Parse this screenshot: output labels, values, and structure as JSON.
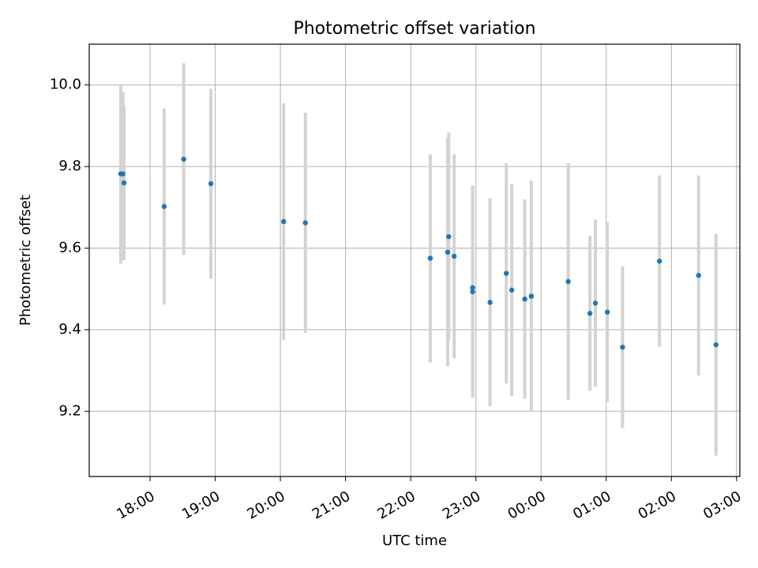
{
  "chart_data": {
    "type": "scatter",
    "title": "Photometric offset variation",
    "xlabel": "UTC time",
    "ylabel": "Photometric offset",
    "x_tick_labels": [
      "18:00",
      "19:00",
      "20:00",
      "21:00",
      "22:00",
      "23:00",
      "00:00",
      "01:00",
      "02:00",
      "03:00"
    ],
    "x_tick_hours": [
      18,
      19,
      20,
      21,
      22,
      23,
      24,
      25,
      26,
      27
    ],
    "y_ticks": [
      9.2,
      9.4,
      9.6,
      9.8,
      10.0
    ],
    "y_tick_labels": [
      "9.2",
      "9.4",
      "9.6",
      "9.8",
      "10.0"
    ],
    "xlim": [
      "17:04",
      "03:03"
    ],
    "ylim": [
      9.04,
      10.1
    ],
    "grid": true,
    "colors": {
      "points": "#1f77b4",
      "errorbars": "#d3d3d3",
      "grid": "#b0b0b0"
    },
    "series": [
      {
        "points": [
          {
            "x": "17:33",
            "y": 9.782,
            "err": 0.22
          },
          {
            "x": "17:35",
            "y": 9.782,
            "err": 0.2
          },
          {
            "x": "17:36",
            "y": 9.76,
            "err": 0.19
          },
          {
            "x": "18:13",
            "y": 9.702,
            "err": 0.24
          },
          {
            "x": "18:31",
            "y": 9.818,
            "err": 0.235
          },
          {
            "x": "18:56",
            "y": 9.758,
            "err": 0.233
          },
          {
            "x": "20:03",
            "y": 9.665,
            "err": 0.29
          },
          {
            "x": "20:23",
            "y": 9.662,
            "err": 0.27
          },
          {
            "x": "22:18",
            "y": 9.575,
            "err": 0.255
          },
          {
            "x": "22:34",
            "y": 9.59,
            "err": 0.28
          },
          {
            "x": "22:35",
            "y": 9.628,
            "err": 0.255
          },
          {
            "x": "22:40",
            "y": 9.58,
            "err": 0.25
          },
          {
            "x": "22:57",
            "y": 9.503,
            "err": 0.25
          },
          {
            "x": "22:57",
            "y": 9.493,
            "err": 0.26
          },
          {
            "x": "23:13",
            "y": 9.467,
            "err": 0.255
          },
          {
            "x": "23:28",
            "y": 9.538,
            "err": 0.27
          },
          {
            "x": "23:33",
            "y": 9.497,
            "err": 0.26
          },
          {
            "x": "23:45",
            "y": 9.475,
            "err": 0.245
          },
          {
            "x": "23:51",
            "y": 9.482,
            "err": 0.283
          },
          {
            "x": "00:25",
            "y": 9.518,
            "err": 0.29
          },
          {
            "x": "00:45",
            "y": 9.44,
            "err": 0.19
          },
          {
            "x": "00:50",
            "y": 9.465,
            "err": 0.205
          },
          {
            "x": "01:01",
            "y": 9.443,
            "err": 0.22
          },
          {
            "x": "01:15",
            "y": 9.357,
            "err": 0.198
          },
          {
            "x": "01:49",
            "y": 9.568,
            "err": 0.21
          },
          {
            "x": "02:25",
            "y": 9.533,
            "err": 0.245
          },
          {
            "x": "02:41",
            "y": 9.363,
            "err": 0.272
          }
        ]
      }
    ]
  }
}
